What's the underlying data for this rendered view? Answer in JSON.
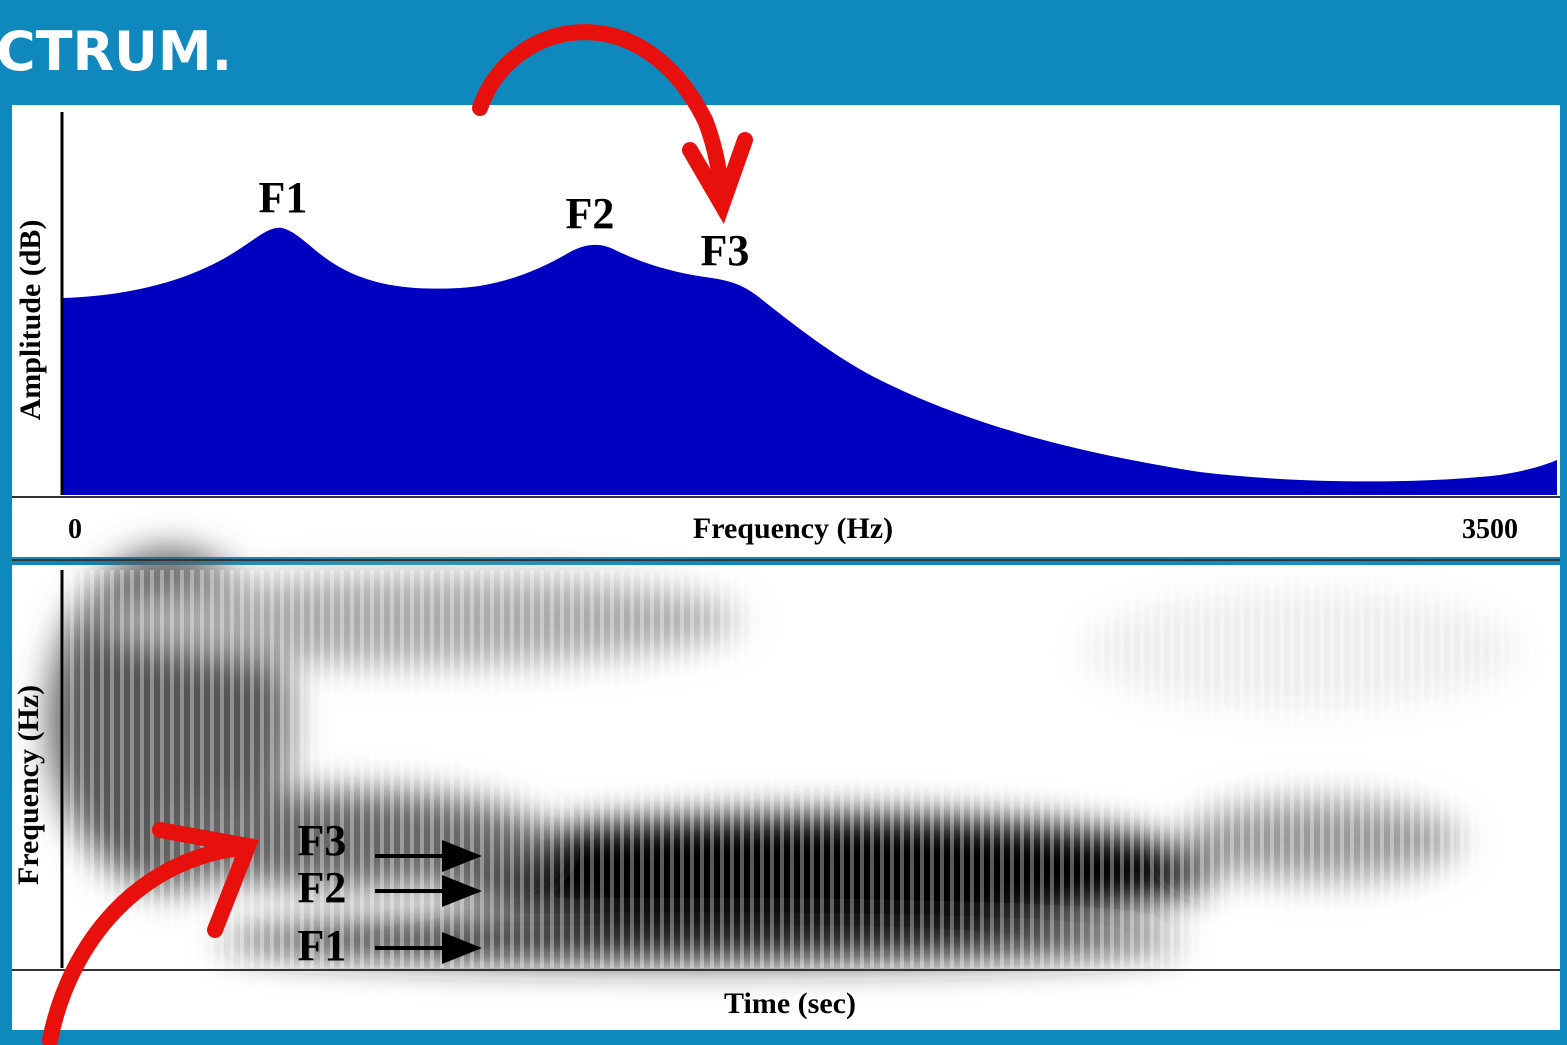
{
  "header": {
    "title": "CTRUM."
  },
  "spectrum": {
    "y_label": "Amplitude (dB)",
    "x_label": "Frequency (Hz)",
    "x_start": 0,
    "x_end": 3500,
    "peaks": [
      "F1",
      "F2",
      "F3"
    ]
  },
  "spectrogram": {
    "y_label": "Frequency (Hz)",
    "x_label": "Time (sec)",
    "formants": [
      "F3",
      "F2",
      "F1"
    ]
  }
}
